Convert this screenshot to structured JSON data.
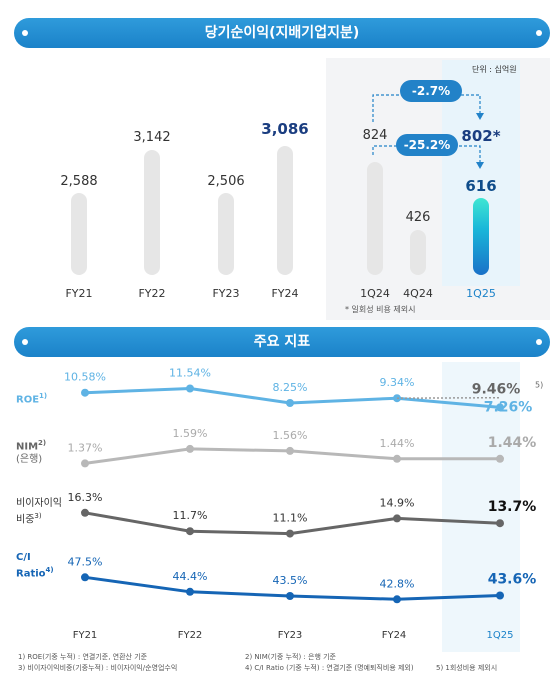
{
  "chart_data": [
    {
      "type": "bar",
      "title": "당기순이익(지배기업지분)",
      "unit": "단위 : 십억원",
      "categories": [
        "FY21",
        "FY22",
        "FY23",
        "FY24",
        "1Q24",
        "4Q24",
        "1Q25"
      ],
      "values": [
        2588,
        3142,
        2506,
        3086,
        824,
        426,
        616
      ],
      "value_labels": [
        "2,588",
        "3,142",
        "2,506",
        "3,086",
        "824",
        "426",
        "616"
      ],
      "extra_labels": {
        "q1_2025_adjusted": "802*"
      },
      "annotations": [
        "-2.7%",
        "-25.2%"
      ],
      "footnote": "* 일회성 비용 제외시"
    },
    {
      "type": "line",
      "title": "주요 지표",
      "x": [
        "FY21",
        "FY22",
        "FY23",
        "FY24",
        "1Q25"
      ],
      "series": [
        {
          "name": "ROE",
          "values": [
            10.58,
            11.54,
            8.25,
            9.34,
            7.26
          ],
          "labels": [
            "10.58%",
            "11.54%",
            "8.25%",
            "9.34%",
            "7.26%"
          ],
          "extra": "9.46%"
        },
        {
          "name": "NIM (은행)",
          "values": [
            1.37,
            1.59,
            1.56,
            1.44,
            1.44
          ],
          "labels": [
            "1.37%",
            "1.59%",
            "1.56%",
            "1.44%",
            "1.44%"
          ]
        },
        {
          "name": "비이자이익 비중",
          "values": [
            16.3,
            11.7,
            11.1,
            14.9,
            13.7
          ],
          "labels": [
            "16.3%",
            "11.7%",
            "11.1%",
            "14.9%",
            "13.7%"
          ]
        },
        {
          "name": "C/I Ratio",
          "values": [
            47.5,
            44.4,
            43.5,
            42.8,
            43.6
          ],
          "labels": [
            "47.5%",
            "44.4%",
            "43.5%",
            "42.8%",
            "43.6%"
          ]
        }
      ]
    }
  ],
  "header": {
    "profit": "당기순이익(지배기업지분)",
    "kpi": "주요 지표"
  },
  "kpi_labels": {
    "roe": "ROE",
    "roe_sup": "1)",
    "nim": "NIM",
    "nim_sup": "2)",
    "nim_sub": "(은행)",
    "nonint1": "비이자이익",
    "nonint2": "비중",
    "nonint_sup": "3)",
    "ci1": "C/I",
    "ci2": "Ratio",
    "ci_sup": "4)",
    "roe_extra_sup": "5)"
  },
  "footnotes": {
    "f1": "1) ROE(기중 누적) :  연결기준, 연환산 기준",
    "f2": "2) NIM(기중 누적) : 은행 기준",
    "f3": "3) 비이자이익비중(기중누적) : 비이자이익/순영업수익",
    "f4": "4) C/I Ratio (기중 누적) :  연결기준 (명예퇴직비용  제외)",
    "f5": "5) 1회성비용 제외시"
  },
  "colors": {
    "roe": "#5fb3e4",
    "nim": "#b8b8b8",
    "nonint": "#666666",
    "ci": "#1565b5",
    "accent": "#1b82c9"
  }
}
